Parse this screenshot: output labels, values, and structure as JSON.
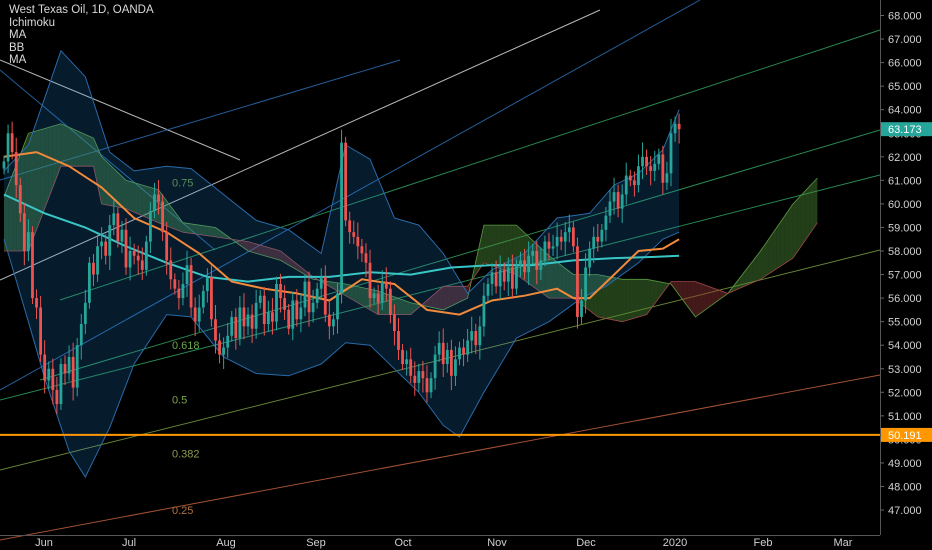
{
  "legend": {
    "title": "West Texas Oil, 1D, OANDA",
    "indicators": [
      "Ichimoku",
      "MA",
      "BB",
      "MA"
    ]
  },
  "price_tags": {
    "last": "63.173",
    "level": "50.191"
  },
  "fib_labels": [
    {
      "text": "0.75",
      "price": 60.9,
      "color": "#5a8f5a"
    },
    {
      "text": "0.618",
      "price": 54.0,
      "color": "#6aa84f"
    },
    {
      "text": "0.5",
      "price": 51.7,
      "color": "#7ca84f"
    },
    {
      "text": "0.382",
      "price": 49.4,
      "color": "#8f9a4f"
    },
    {
      "text": "0.25",
      "price": 47.0,
      "color": "#b07040"
    }
  ],
  "chart_data": {
    "type": "candlestick",
    "title": "West Texas Oil, 1D, OANDA",
    "y_ticks": [
      "47.000",
      "48.000",
      "49.000",
      "50.000",
      "51.000",
      "52.000",
      "53.000",
      "54.000",
      "55.000",
      "56.000",
      "57.000",
      "58.000",
      "59.000",
      "60.000",
      "61.000",
      "62.000",
      "63.000",
      "64.000",
      "65.000",
      "66.000",
      "67.000",
      "68.000"
    ],
    "ylim": [
      46.6,
      68.4
    ],
    "x_ticks": [
      "Jun",
      "Jul",
      "Aug",
      "Sep",
      "Oct",
      "Nov",
      "Dec",
      "2020",
      "Feb",
      "Mar"
    ],
    "last_price": 63.173,
    "horizontal_level": 50.191,
    "closes": [
      61.8,
      63.0,
      62.2,
      60.8,
      59.6,
      58.0,
      58.8,
      56.0,
      55.6,
      53.6,
      52.5,
      53.0,
      52.1,
      51.5,
      53.2,
      52.8,
      53.5,
      52.2,
      54.0,
      54.9,
      55.8,
      57.5,
      57.0,
      58.2,
      58.4,
      57.8,
      59.1,
      59.6,
      58.4,
      58.9,
      57.3,
      58.0,
      57.8,
      57.6,
      57.2,
      58.4,
      59.7,
      60.4,
      60.1,
      58.8,
      57.6,
      56.8,
      56.4,
      56.0,
      56.6,
      57.4,
      55.6,
      55.0,
      55.6,
      56.3,
      56.9,
      55.1,
      54.2,
      53.6,
      53.9,
      54.4,
      55.2,
      54.3,
      55.6,
      54.8,
      55.3,
      54.7,
      55.8,
      56.1,
      54.9,
      55.4,
      55.0,
      56.6,
      56.0,
      55.5,
      54.7,
      55.9,
      55.1,
      55.6,
      56.7,
      55.4,
      55.8,
      56.4,
      56.9,
      55.3,
      54.8,
      55.1,
      56.2,
      62.6,
      59.3,
      58.8,
      58.6,
      58.2,
      57.9,
      57.5,
      56.0,
      56.2,
      55.8,
      56.7,
      56.4,
      55.3,
      54.6,
      53.8,
      53.2,
      53.4,
      52.7,
      52.4,
      52.9,
      52.6,
      52.0,
      52.6,
      53.6,
      54.1,
      53.2,
      53.8,
      52.7,
      53.4,
      53.9,
      53.6,
      54.2,
      54.6,
      54.0,
      54.8,
      56.1,
      56.6,
      57.1,
      56.5,
      57.2,
      56.7,
      57.3,
      56.4,
      57.4,
      57.6,
      57.1,
      57.8,
      58.0,
      57.2,
      57.6,
      58.4,
      58.1,
      58.2,
      58.6,
      58.4,
      58.8,
      59.0,
      58.2,
      55.2,
      55.9,
      57.3,
      58.1,
      58.6,
      58.4,
      58.9,
      59.5,
      60.1,
      60.5,
      59.8,
      60.4,
      61.2,
      61.0,
      60.8,
      61.6,
      62.0,
      61.6,
      61.4,
      61.7,
      62.1,
      60.9,
      61.3,
      63.0,
      63.4,
      63.173
    ],
    "sma_slow": [
      [
        0,
        60.4
      ],
      [
        10,
        59.6
      ],
      [
        20,
        59.0
      ],
      [
        30,
        58.2
      ],
      [
        40,
        57.5
      ],
      [
        50,
        56.9
      ],
      [
        60,
        56.7
      ],
      [
        70,
        56.9
      ],
      [
        80,
        56.9
      ],
      [
        90,
        57.1
      ],
      [
        100,
        57.0
      ],
      [
        110,
        57.3
      ],
      [
        120,
        57.4
      ],
      [
        130,
        57.4
      ],
      [
        140,
        57.6
      ],
      [
        150,
        57.7
      ],
      [
        160,
        57.75
      ],
      [
        166,
        57.8
      ]
    ],
    "sma_fast": [
      [
        0,
        62.0
      ],
      [
        8,
        62.2
      ],
      [
        16,
        61.6
      ],
      [
        24,
        60.7
      ],
      [
        32,
        59.4
      ],
      [
        40,
        58.8
      ],
      [
        48,
        57.9
      ],
      [
        56,
        56.7
      ],
      [
        64,
        56.4
      ],
      [
        72,
        56.2
      ],
      [
        80,
        55.9
      ],
      [
        88,
        56.8
      ],
      [
        96,
        56.6
      ],
      [
        104,
        55.5
      ],
      [
        112,
        55.3
      ],
      [
        120,
        55.9
      ],
      [
        128,
        56.1
      ],
      [
        136,
        56.4
      ],
      [
        140,
        56.0
      ],
      [
        144,
        56.0
      ],
      [
        150,
        57.0
      ],
      [
        156,
        58.0
      ],
      [
        162,
        58.1
      ],
      [
        166,
        58.5
      ]
    ],
    "bb_upper": [
      [
        0,
        61.4
      ],
      [
        6,
        62.5
      ],
      [
        10,
        64.5
      ],
      [
        14,
        66.5
      ],
      [
        20,
        65.4
      ],
      [
        26,
        62.2
      ],
      [
        32,
        61.4
      ],
      [
        40,
        61.6
      ],
      [
        46,
        61.5
      ],
      [
        54,
        60.4
      ],
      [
        62,
        59.3
      ],
      [
        70,
        58.9
      ],
      [
        78,
        57.9
      ],
      [
        84,
        62.5
      ],
      [
        90,
        61.9
      ],
      [
        96,
        59.4
      ],
      [
        102,
        59.1
      ],
      [
        108,
        57.9
      ],
      [
        114,
        56.2
      ],
      [
        120,
        57.2
      ],
      [
        128,
        57.9
      ],
      [
        136,
        59.4
      ],
      [
        144,
        59.6
      ],
      [
        150,
        60.8
      ],
      [
        156,
        61.3
      ],
      [
        162,
        62.3
      ],
      [
        166,
        64.0
      ]
    ],
    "bb_lower": [
      [
        0,
        58.5
      ],
      [
        6,
        55.0
      ],
      [
        10,
        52.6
      ],
      [
        16,
        49.5
      ],
      [
        20,
        48.4
      ],
      [
        26,
        50.5
      ],
      [
        32,
        53.2
      ],
      [
        40,
        55.3
      ],
      [
        46,
        55.2
      ],
      [
        54,
        53.5
      ],
      [
        62,
        52.8
      ],
      [
        70,
        52.7
      ],
      [
        78,
        53.2
      ],
      [
        84,
        54.1
      ],
      [
        90,
        54.0
      ],
      [
        96,
        53.0
      ],
      [
        102,
        52.0
      ],
      [
        108,
        50.6
      ],
      [
        112,
        50.1
      ],
      [
        118,
        52.0
      ],
      [
        126,
        54.3
      ],
      [
        134,
        55.0
      ],
      [
        142,
        56.0
      ],
      [
        148,
        56.5
      ],
      [
        156,
        57.5
      ],
      [
        162,
        58.5
      ],
      [
        166,
        58.8
      ]
    ],
    "cloud_span_a": [
      [
        0,
        60.3
      ],
      [
        6,
        63.0
      ],
      [
        14,
        63.4
      ],
      [
        22,
        62.8
      ],
      [
        24,
        62.0
      ],
      [
        30,
        61.0
      ],
      [
        38,
        60.6
      ],
      [
        44,
        59.2
      ],
      [
        52,
        59.0
      ],
      [
        60,
        58.0
      ],
      [
        68,
        57.6
      ],
      [
        76,
        56.8
      ],
      [
        84,
        56.6
      ],
      [
        92,
        56.3
      ],
      [
        100,
        55.8
      ],
      [
        108,
        55.5
      ],
      [
        114,
        56.0
      ],
      [
        118,
        59.1
      ],
      [
        126,
        59.1
      ],
      [
        134,
        57.8
      ],
      [
        140,
        57.0
      ],
      [
        146,
        57.0
      ],
      [
        152,
        56.8
      ],
      [
        158,
        56.8
      ],
      [
        164,
        56.6
      ],
      [
        170,
        55.2
      ],
      [
        178,
        56.2
      ],
      [
        186,
        58.0
      ],
      [
        194,
        60.0
      ],
      [
        200,
        61.1
      ]
    ],
    "cloud_span_b": [
      [
        0,
        58.0
      ],
      [
        6,
        58.0
      ],
      [
        14,
        61.6
      ],
      [
        22,
        61.6
      ],
      [
        24,
        60.0
      ],
      [
        30,
        59.8
      ],
      [
        38,
        59.2
      ],
      [
        44,
        58.8
      ],
      [
        52,
        58.6
      ],
      [
        60,
        58.4
      ],
      [
        68,
        58.0
      ],
      [
        76,
        56.9
      ],
      [
        84,
        56.1
      ],
      [
        92,
        55.3
      ],
      [
        100,
        55.3
      ],
      [
        108,
        56.5
      ],
      [
        114,
        56.5
      ],
      [
        118,
        57.5
      ],
      [
        126,
        57.0
      ],
      [
        134,
        56.0
      ],
      [
        140,
        56.0
      ],
      [
        146,
        55.2
      ],
      [
        152,
        55.0
      ],
      [
        158,
        55.3
      ],
      [
        164,
        56.7
      ],
      [
        170,
        56.7
      ],
      [
        178,
        56.2
      ],
      [
        186,
        56.8
      ],
      [
        194,
        57.7
      ],
      [
        200,
        59.2
      ]
    ],
    "grid": false,
    "legend_placement": "top-left"
  }
}
